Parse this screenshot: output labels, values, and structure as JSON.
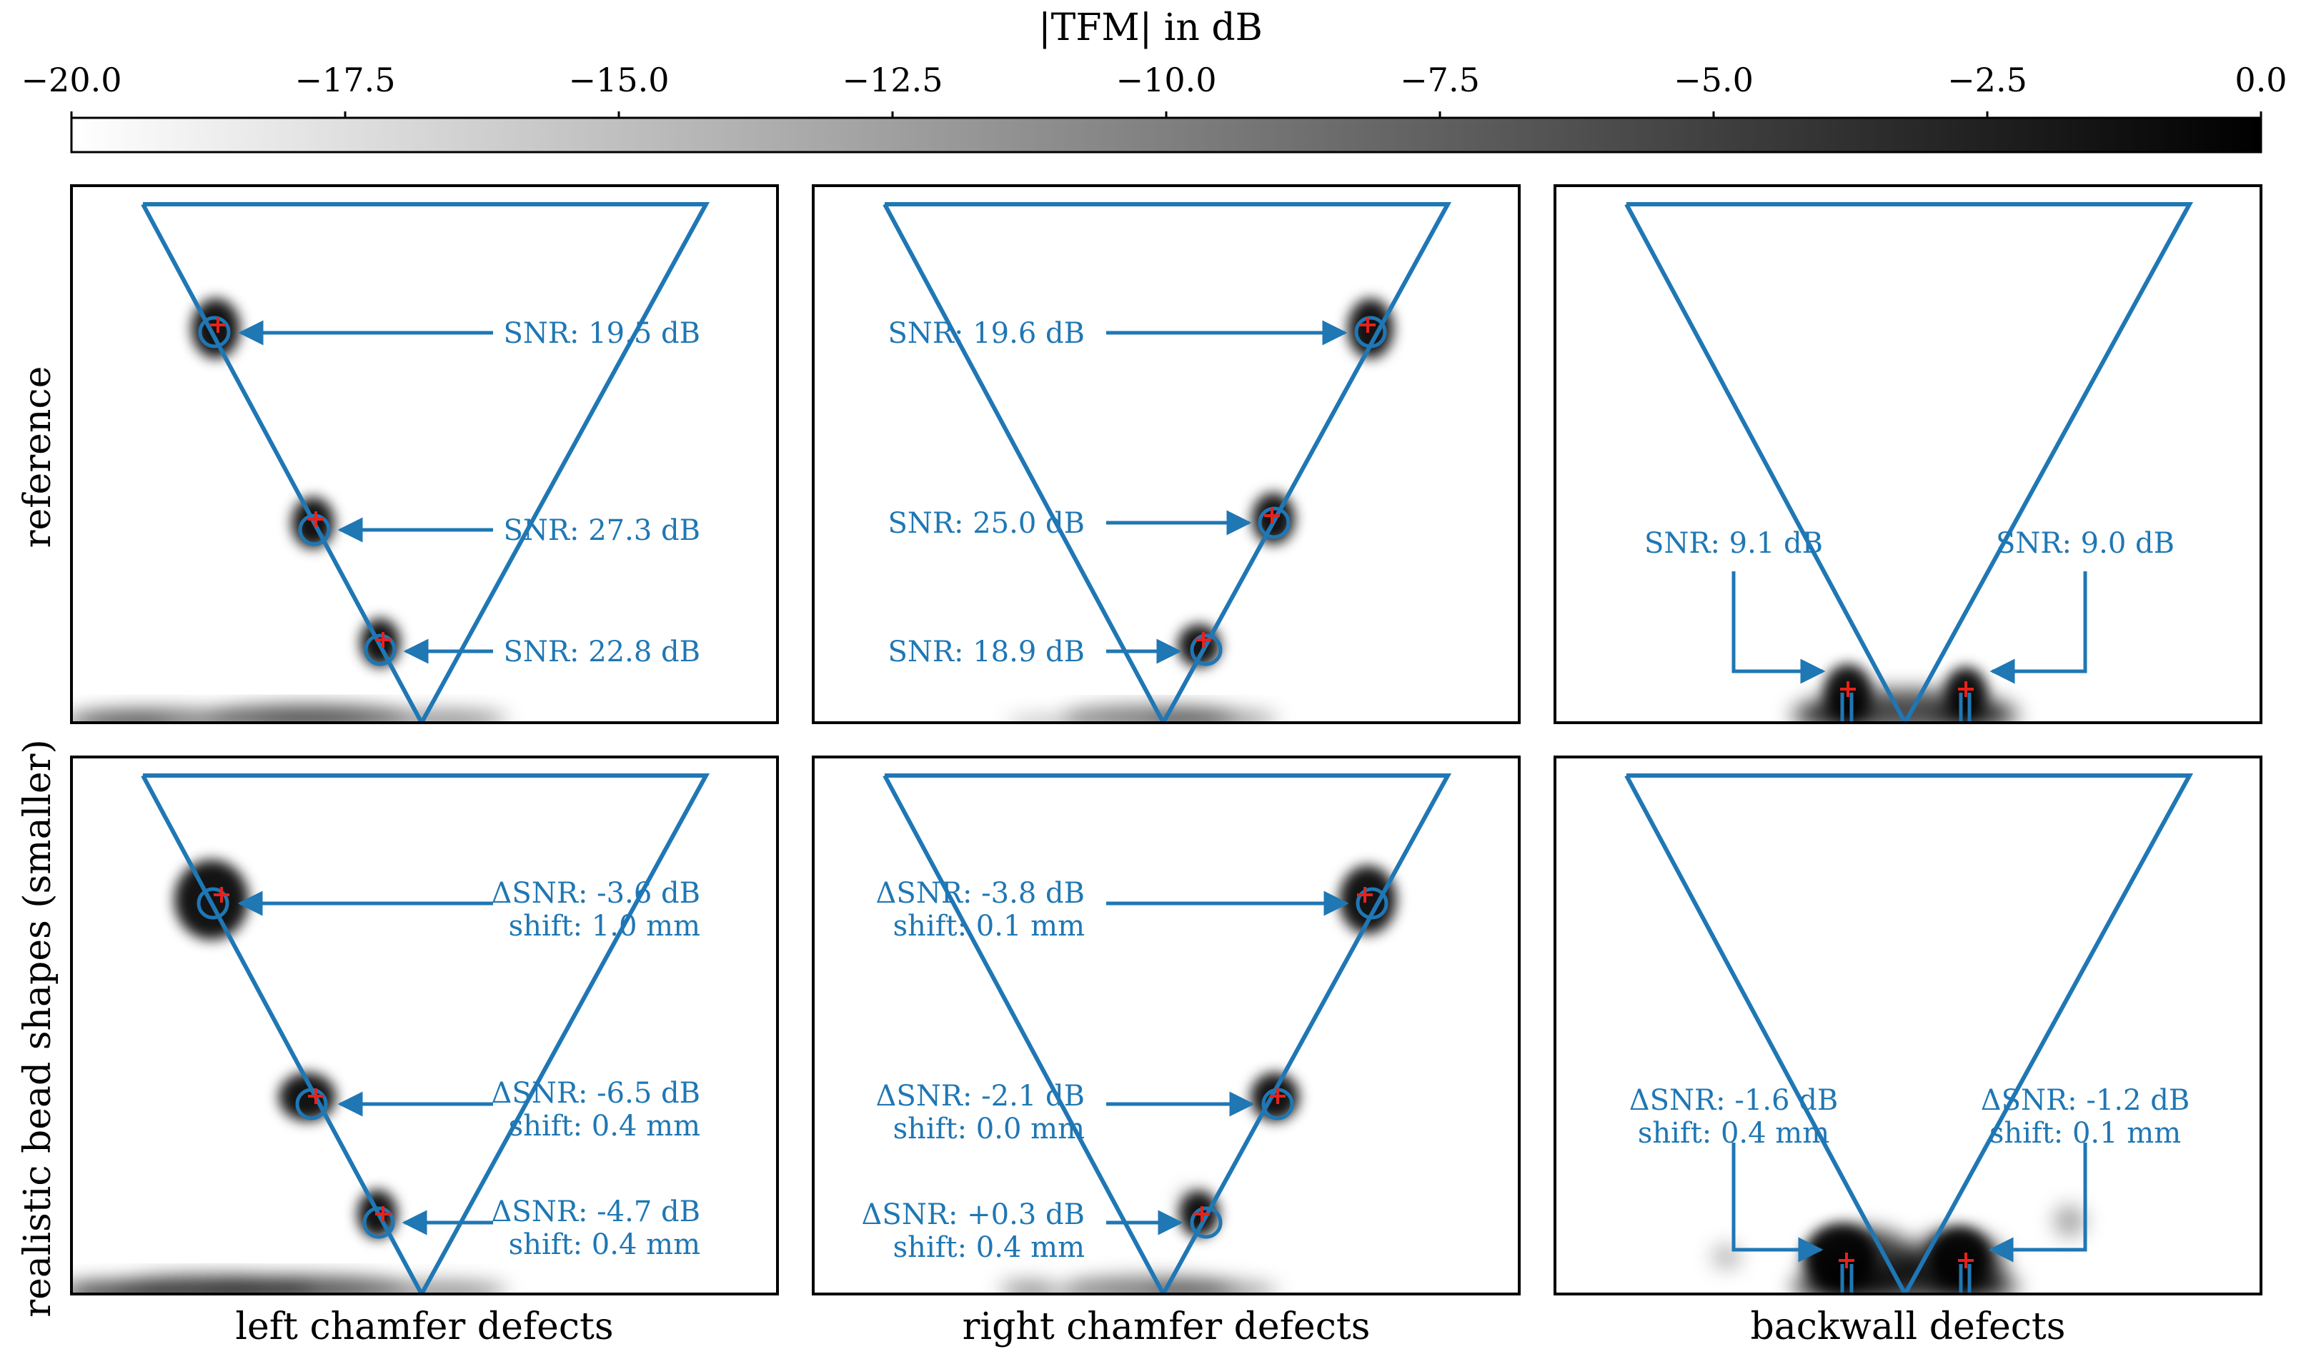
{
  "colorbar": {
    "label": "|TFM| in dB",
    "range": [
      -20,
      0
    ],
    "ticks": [
      "−20.0",
      "−17.5",
      "−15.0",
      "−12.5",
      "−10.0",
      "−7.5",
      "−5.0",
      "−2.5",
      "0.0"
    ],
    "colormap": "gray_r"
  },
  "rows": [
    "reference",
    "realistic bead shapes (smaller)"
  ],
  "cols": [
    "left chamfer defects",
    "right chamfer defects",
    "backwall defects"
  ],
  "colors": {
    "geometry": "#1f77b4",
    "marker": "#e8211c",
    "text": "#1f77b4"
  },
  "chart_data": {
    "type": "heatmap",
    "panels": [
      {
        "row": "reference",
        "col": "left chamfer defects",
        "annotations": [
          {
            "lines": [
              "SNR: 19.5 dB"
            ],
            "defect": 1
          },
          {
            "lines": [
              "SNR: 27.3 dB"
            ],
            "defect": 2
          },
          {
            "lines": [
              "SNR: 22.8 dB"
            ],
            "defect": 3
          }
        ]
      },
      {
        "row": "reference",
        "col": "right chamfer defects",
        "annotations": [
          {
            "lines": [
              "SNR: 19.6 dB"
            ],
            "defect": 1
          },
          {
            "lines": [
              "SNR: 25.0 dB"
            ],
            "defect": 2
          },
          {
            "lines": [
              "SNR: 18.9 dB"
            ],
            "defect": 3
          }
        ]
      },
      {
        "row": "reference",
        "col": "backwall defects",
        "annotations": [
          {
            "lines": [
              "SNR: 9.1 dB"
            ],
            "defect": 1
          },
          {
            "lines": [
              "SNR: 9.0 dB"
            ],
            "defect": 2
          }
        ]
      },
      {
        "row": "realistic bead shapes (smaller)",
        "col": "left chamfer defects",
        "annotations": [
          {
            "lines": [
              "ΔSNR: -3.6 dB",
              "shift: 1.0 mm"
            ],
            "defect": 1
          },
          {
            "lines": [
              "ΔSNR: -6.5 dB",
              "shift: 0.4 mm"
            ],
            "defect": 2
          },
          {
            "lines": [
              "ΔSNR: -4.7 dB",
              "shift: 0.4 mm"
            ],
            "defect": 3
          }
        ]
      },
      {
        "row": "realistic bead shapes (smaller)",
        "col": "right chamfer defects",
        "annotations": [
          {
            "lines": [
              "ΔSNR: -3.8 dB",
              "shift: 0.1 mm"
            ],
            "defect": 1
          },
          {
            "lines": [
              "ΔSNR: -2.1 dB",
              "shift: 0.0 mm"
            ],
            "defect": 2
          },
          {
            "lines": [
              "ΔSNR: +0.3 dB",
              "shift: 0.4 mm"
            ],
            "defect": 3
          }
        ]
      },
      {
        "row": "realistic bead shapes (smaller)",
        "col": "backwall defects",
        "annotations": [
          {
            "lines": [
              "ΔSNR: -1.6 dB",
              "shift: 0.4 mm"
            ],
            "defect": 1
          },
          {
            "lines": [
              "ΔSNR: -1.2 dB",
              "shift: 0.1 mm"
            ],
            "defect": 2
          }
        ]
      }
    ]
  }
}
